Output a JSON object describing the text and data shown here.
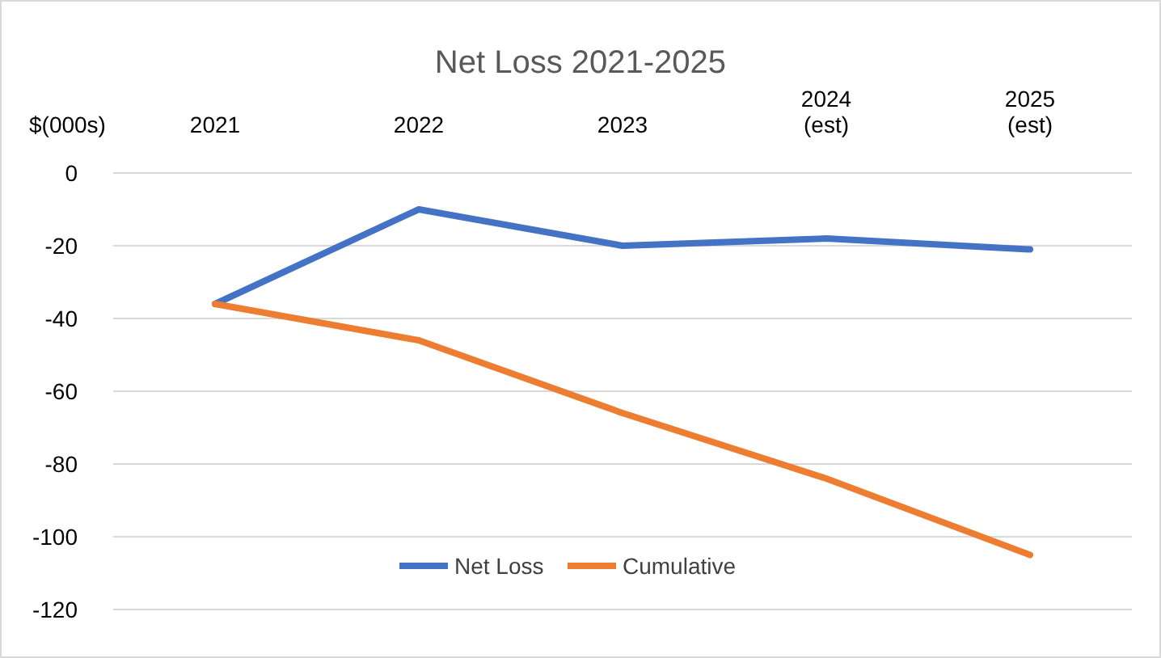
{
  "chart_data": {
    "type": "line",
    "title": "Net Loss 2021-2025",
    "ylabel": "$(000s)",
    "categories": [
      "2021",
      "2022",
      "2023",
      "2024\n(est)",
      "2025\n(est)"
    ],
    "series": [
      {
        "name": "Net Loss",
        "color": "#4472c4",
        "values": [
          -36,
          -10,
          -20,
          -18,
          -21
        ]
      },
      {
        "name": "Cumulative",
        "color": "#ed7d31",
        "values": [
          -36,
          -46,
          -66,
          -84,
          -105
        ]
      }
    ],
    "ylim": [
      -120,
      0
    ],
    "yticks": [
      0,
      -20,
      -40,
      -60,
      -80,
      -100,
      -120
    ],
    "grid": "y",
    "legend": "bottom",
    "marker": "none",
    "line_style": "solid"
  }
}
